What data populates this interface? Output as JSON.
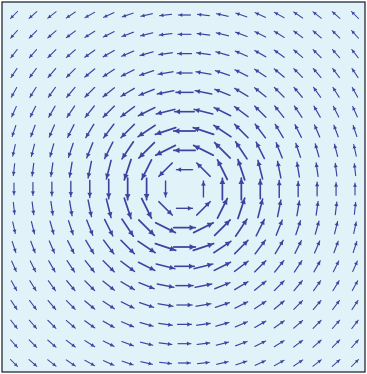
{
  "chart_data": {
    "type": "quiver",
    "title": "",
    "xlabel": "",
    "ylabel": "",
    "grid": false,
    "legend": "none",
    "field": "vortex",
    "rotation": "counterclockwise",
    "center": [
      0,
      0
    ],
    "grid_points": 19,
    "xlim": [
      -1,
      1
    ],
    "ylim": [
      -1,
      1
    ],
    "peak_speed_radius": 0.25,
    "colors": {
      "background": "#e1f3f9",
      "frame": "#0d1a2a",
      "arrow": "#3c43a0"
    }
  }
}
